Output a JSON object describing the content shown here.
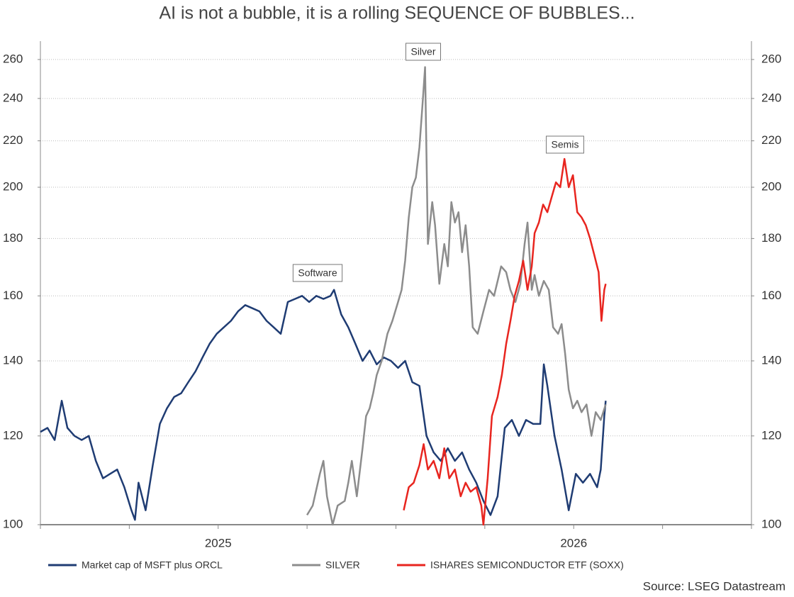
{
  "chart_data": {
    "type": "line",
    "title": "AI is not a bubble, it is a rolling SEQUENCE OF BUBBLES...",
    "source": "Source: LSEG Datastream",
    "log_scale": true,
    "grid": true,
    "xlim": [
      2024.5,
      2026.5
    ],
    "xticks": [
      2025,
      2026
    ],
    "xminorticks": [
      2024.5,
      2024.75,
      2025.25,
      2025.5,
      2025.75,
      2026.25,
      2026.5
    ],
    "ylim": [
      100,
      270
    ],
    "yticks": [
      100,
      120,
      140,
      160,
      180,
      200,
      220,
      240,
      260
    ],
    "annotations": [
      "Software",
      "Silver",
      "Semis"
    ],
    "series": [
      {
        "name": "Market cap of MSFT plus ORCL",
        "color": "#1f3c73",
        "x": [
          2024.5,
          2024.52,
          2024.54,
          2024.56,
          2024.576,
          2024.596,
          2024.616,
          2024.636,
          2024.656,
          2024.676,
          2024.696,
          2024.716,
          2024.736,
          2024.756,
          2024.766,
          2024.776,
          2024.796,
          2024.816,
          2024.836,
          2024.856,
          2024.876,
          2024.896,
          2024.916,
          2024.936,
          2024.956,
          2024.976,
          2024.996,
          2025.016,
          2025.036,
          2025.056,
          2025.076,
          2025.096,
          2025.116,
          2025.136,
          2025.156,
          2025.176,
          2025.196,
          2025.216,
          2025.236,
          2025.256,
          2025.276,
          2025.296,
          2025.316,
          2025.326,
          2025.346,
          2025.366,
          2025.386,
          2025.406,
          2025.426,
          2025.446,
          2025.466,
          2025.486,
          2025.506,
          2025.526,
          2025.546,
          2025.566,
          2025.586,
          2025.606,
          2025.626,
          2025.646,
          2025.666,
          2025.686,
          2025.706,
          2025.726,
          2025.746,
          2025.766,
          2025.786,
          2025.806,
          2025.826,
          2025.846,
          2025.866,
          2025.886,
          2025.906,
          2025.916,
          2025.926,
          2025.946,
          2025.966,
          2025.986,
          2026.006,
          2026.026,
          2026.046,
          2026.066,
          2026.076,
          2026.086,
          2026.09
        ],
        "values": [
          121,
          122,
          119,
          129,
          122,
          120,
          119,
          120,
          114,
          110,
          111,
          112,
          108,
          103,
          101,
          109,
          103,
          113,
          123,
          127,
          130,
          131,
          134,
          137,
          141,
          145,
          148,
          150,
          152,
          155,
          157,
          156,
          155,
          152,
          150,
          148,
          158,
          159,
          160,
          158,
          160,
          159,
          160,
          162,
          154,
          150,
          145,
          140,
          143,
          139,
          141,
          140,
          138,
          140,
          134,
          133,
          120,
          116,
          114,
          117,
          114,
          116,
          112,
          109,
          105,
          102,
          106,
          122,
          124,
          120,
          124,
          123,
          123,
          139,
          133,
          120,
          112,
          103,
          111,
          109,
          111,
          108,
          112,
          125,
          129
        ]
      },
      {
        "name": "SILVER",
        "color": "#8c8c8c",
        "x": [
          2025.25,
          2025.266,
          2025.286,
          2025.296,
          2025.306,
          2025.322,
          2025.336,
          2025.356,
          2025.366,
          2025.376,
          2025.39,
          2025.406,
          2025.416,
          2025.426,
          2025.436,
          2025.446,
          2025.46,
          2025.476,
          2025.49,
          2025.506,
          2025.516,
          2025.526,
          2025.536,
          2025.546,
          2025.556,
          2025.566,
          2025.576,
          2025.582,
          2025.59,
          2025.602,
          2025.61,
          2025.622,
          2025.636,
          2025.646,
          2025.656,
          2025.666,
          2025.676,
          2025.686,
          2025.696,
          2025.706,
          2025.716,
          2025.73,
          2025.746,
          2025.762,
          2025.776,
          2025.796,
          2025.81,
          2025.822,
          2025.836,
          2025.85,
          2025.862,
          2025.87,
          2025.882,
          2025.89,
          2025.902,
          2025.916,
          2025.93,
          2025.942,
          2025.956,
          2025.966,
          2025.976,
          2025.986,
          2025.998,
          2026.01,
          2026.022,
          2026.036,
          2026.05,
          2026.062,
          2026.076,
          2026.09
        ],
        "values": [
          102,
          104,
          111,
          114,
          106,
          100,
          104,
          105,
          109,
          114,
          106,
          117,
          125,
          127,
          131,
          136,
          140,
          148,
          152,
          158,
          162,
          172,
          188,
          200,
          204,
          217,
          240,
          256,
          178,
          194,
          185,
          164,
          178,
          170,
          194,
          186,
          190,
          175,
          185,
          170,
          150,
          148,
          155,
          162,
          160,
          170,
          168,
          162,
          158,
          164,
          178,
          186,
          162,
          167,
          160,
          165,
          162,
          150,
          148,
          151,
          142,
          132,
          127,
          129,
          126,
          128,
          120,
          126,
          124,
          128
        ]
      },
      {
        "name": "ISHARES SEMICONDUCTOR ETF (SOXX)",
        "color": "#e8251f",
        "x": [
          2025.522,
          2025.536,
          2025.55,
          2025.566,
          2025.578,
          2025.59,
          2025.606,
          2025.622,
          2025.636,
          2025.65,
          2025.666,
          2025.682,
          2025.696,
          2025.71,
          2025.726,
          2025.74,
          2025.746,
          2025.758,
          2025.77,
          2025.786,
          2025.798,
          2025.81,
          2025.822,
          2025.834,
          2025.846,
          2025.858,
          2025.87,
          2025.882,
          2025.89,
          2025.902,
          2025.914,
          2025.926,
          2025.938,
          2025.95,
          2025.962,
          2025.974,
          2025.986,
          2025.998,
          2026.01,
          2026.022,
          2026.034,
          2026.046,
          2026.058,
          2026.07,
          2026.078,
          2026.086,
          2026.09
        ],
        "values": [
          103,
          108,
          109,
          113,
          118,
          112,
          114,
          110,
          117,
          110,
          112,
          106,
          109,
          107,
          108,
          104,
          100,
          110,
          125,
          130,
          136,
          145,
          152,
          160,
          165,
          172,
          162,
          170,
          182,
          186,
          193,
          190,
          196,
          202,
          200,
          212,
          200,
          205,
          190,
          188,
          185,
          180,
          174,
          168,
          152,
          162,
          164
        ]
      }
    ]
  }
}
